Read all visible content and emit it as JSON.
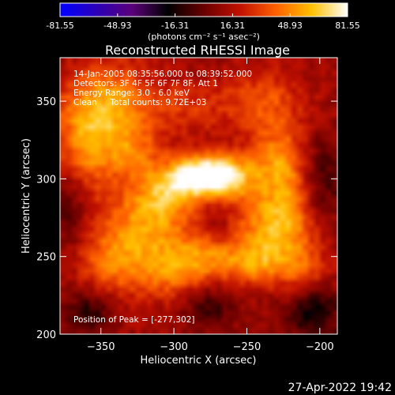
{
  "colorbar": {
    "tick_labels": [
      "-81.55",
      "-48.93",
      "-16.31",
      "16.31",
      "48.93",
      "81.55"
    ],
    "units": "(photons cm⁻² s⁻¹ asec⁻²)",
    "colors": [
      "#0000ff",
      "#2a00b8",
      "#5a007a",
      "#000000",
      "#6a0000",
      "#c01000",
      "#ff6000",
      "#ffc000",
      "#ffffff"
    ]
  },
  "footer_timestamp": "27-Apr-2022 19:42",
  "chart_data": {
    "type": "heatmap",
    "title": "Reconstructed RHESSI Image",
    "xlabel": "Heliocentric X (arcsec)",
    "ylabel": "Heliocentric Y (arcsec)",
    "xlim": [
      -378,
      -188
    ],
    "ylim": [
      200,
      378
    ],
    "x_tick_values": [
      -350,
      -300,
      -250,
      -200
    ],
    "x_tick_labels": [
      "−350",
      "−300",
      "−250",
      "−200"
    ],
    "y_tick_values": [
      200,
      250,
      300,
      350
    ],
    "y_tick_labels": [
      "200",
      "250",
      "300",
      "350"
    ],
    "value_range": [
      -81.55,
      81.55
    ],
    "peak": [
      -277,
      302
    ],
    "annotations": [
      "14-Jan-2005 08:35:56.000 to 08:39:52.000",
      "Detectors: 3F 4F 5F 6F 7F 8F, Att 1",
      "Energy Range: 3.0 - 6.0 keV",
      "Clean     Total counts: 9.72E+03",
      "Position of Peak = [-277,302]"
    ],
    "blobs": [
      {
        "x": -282,
        "y": 302,
        "sx": 16,
        "sy": 9,
        "a": 75
      },
      {
        "x": -268,
        "y": 303,
        "sx": 10,
        "sy": 8,
        "a": 30
      },
      {
        "x": -305,
        "y": 290,
        "sx": 14,
        "sy": 11,
        "a": 28
      },
      {
        "x": -345,
        "y": 348,
        "sx": 22,
        "sy": 18,
        "a": 42
      },
      {
        "x": -360,
        "y": 320,
        "sx": 14,
        "sy": 20,
        "a": 30
      },
      {
        "x": -330,
        "y": 318,
        "sx": 14,
        "sy": 12,
        "a": 26
      },
      {
        "x": -320,
        "y": 268,
        "sx": 22,
        "sy": 22,
        "a": 40
      },
      {
        "x": -345,
        "y": 245,
        "sx": 16,
        "sy": 14,
        "a": 22
      },
      {
        "x": -300,
        "y": 240,
        "sx": 18,
        "sy": 12,
        "a": 25
      },
      {
        "x": -280,
        "y": 252,
        "sx": 14,
        "sy": 10,
        "a": 22
      },
      {
        "x": -250,
        "y": 300,
        "sx": 14,
        "sy": 14,
        "a": 25
      },
      {
        "x": -228,
        "y": 315,
        "sx": 12,
        "sy": 16,
        "a": 28
      },
      {
        "x": -222,
        "y": 290,
        "sx": 12,
        "sy": 18,
        "a": 22
      },
      {
        "x": -232,
        "y": 265,
        "sx": 18,
        "sy": 16,
        "a": 42
      },
      {
        "x": -248,
        "y": 245,
        "sx": 18,
        "sy": 10,
        "a": 30
      },
      {
        "x": -240,
        "y": 350,
        "sx": 20,
        "sy": 14,
        "a": 24
      },
      {
        "x": -210,
        "y": 240,
        "sx": 12,
        "sy": 12,
        "a": 22
      },
      {
        "x": -290,
        "y": 345,
        "sx": 16,
        "sy": 12,
        "a": 15
      },
      {
        "x": -358,
        "y": 215,
        "sx": 12,
        "sy": 10,
        "a": -25
      },
      {
        "x": -275,
        "y": 218,
        "sx": 14,
        "sy": 10,
        "a": -22
      },
      {
        "x": -205,
        "y": 215,
        "sx": 14,
        "sy": 14,
        "a": -30
      },
      {
        "x": -198,
        "y": 300,
        "sx": 10,
        "sy": 20,
        "a": -20
      },
      {
        "x": -372,
        "y": 280,
        "sx": 8,
        "sy": 18,
        "a": -20
      },
      {
        "x": -270,
        "y": 270,
        "sx": 8,
        "sy": 8,
        "a": -10
      }
    ],
    "baseline": 12
  }
}
